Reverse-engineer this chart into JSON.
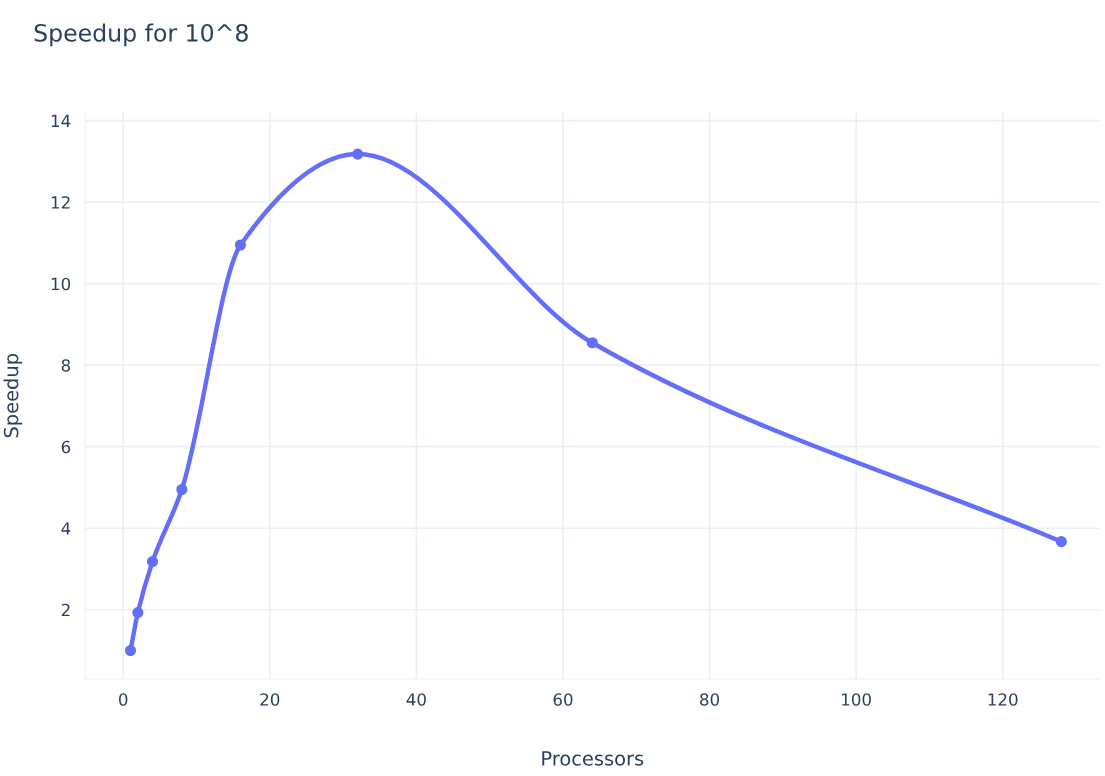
{
  "chart_data": {
    "type": "line",
    "title": "Speedup for 10^8",
    "xlabel": "Processors",
    "ylabel": "Speedup",
    "x": [
      1,
      2,
      4,
      8,
      16,
      32,
      64,
      128
    ],
    "series": [
      {
        "color": "#636efa",
        "values": [
          1.0,
          1.93,
          3.18,
          4.95,
          10.95,
          13.18,
          8.55,
          3.67
        ]
      }
    ],
    "xlim": [
      -5.2,
      133.2
    ],
    "xticks": [
      0,
      20,
      40,
      60,
      80,
      100,
      120
    ],
    "ylim": [
      0.3,
      14.2
    ],
    "yticks": [
      2,
      4,
      6,
      8,
      10,
      12,
      14
    ],
    "grid": true,
    "marker": "circle",
    "line_style": "solid"
  }
}
